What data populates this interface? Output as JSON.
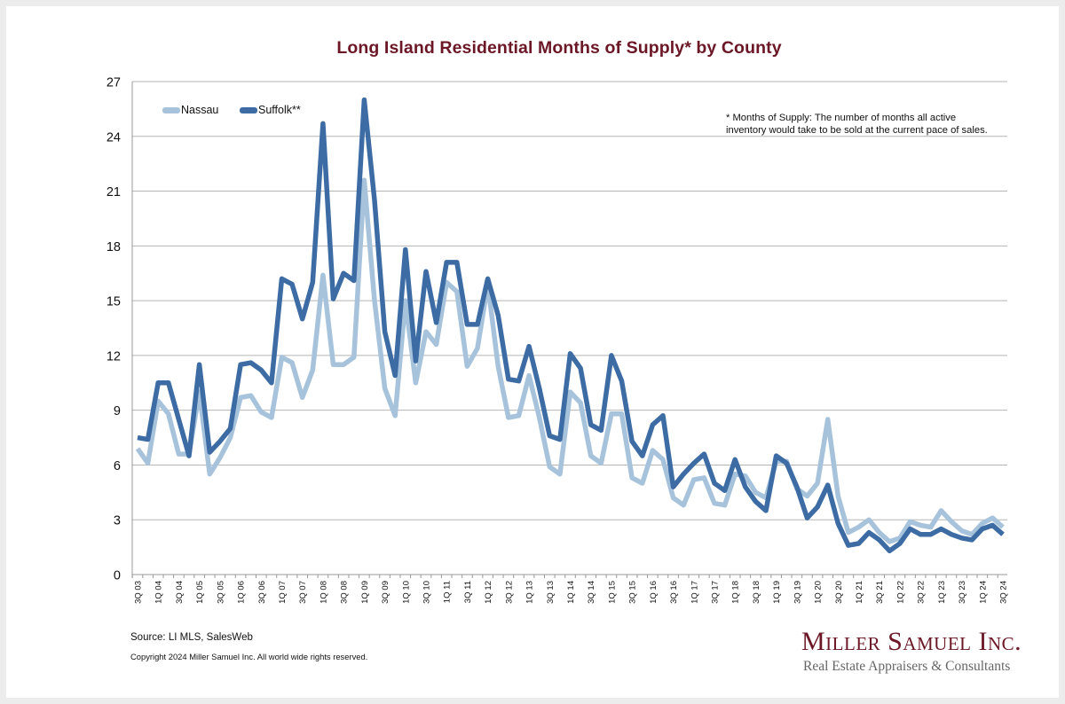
{
  "chart_data": {
    "type": "line",
    "title": "Long Island Residential Months of Supply* by County",
    "xlabel": "",
    "ylabel": "",
    "ylim": [
      0,
      27
    ],
    "yticks": [
      0,
      3,
      6,
      9,
      12,
      15,
      18,
      21,
      24,
      27
    ],
    "grid": true,
    "legend_position": "top-left",
    "x": [
      "3Q 03",
      "4Q 03",
      "1Q 04",
      "2Q 04",
      "3Q 04",
      "4Q 04",
      "1Q 05",
      "2Q 05",
      "3Q 05",
      "4Q 05",
      "1Q 06",
      "2Q 06",
      "3Q 06",
      "4Q 06",
      "1Q 07",
      "2Q 07",
      "3Q 07",
      "4Q 07",
      "1Q 08",
      "2Q 08",
      "3Q 08",
      "4Q 08",
      "1Q 09",
      "2Q 09",
      "3Q 09",
      "4Q 09",
      "1Q 10",
      "2Q 10",
      "3Q 10",
      "4Q 10",
      "1Q 11",
      "2Q 11",
      "3Q 11",
      "4Q 11",
      "1Q 12",
      "2Q 12",
      "3Q 12",
      "4Q 12",
      "1Q 13",
      "2Q 13",
      "3Q 13",
      "4Q 13",
      "1Q 14",
      "2Q 14",
      "3Q 14",
      "4Q 14",
      "1Q 15",
      "2Q 15",
      "3Q 15",
      "4Q 15",
      "1Q 16",
      "2Q 16",
      "3Q 16",
      "4Q 16",
      "1Q 17",
      "2Q 17",
      "3Q 17",
      "4Q 17",
      "1Q 18",
      "2Q 18",
      "3Q 18",
      "4Q 18",
      "1Q 19",
      "2Q 19",
      "3Q 19",
      "4Q 19",
      "1Q 20",
      "2Q 20",
      "3Q 20",
      "4Q 20",
      "1Q 21",
      "2Q 21",
      "3Q 21",
      "4Q 21",
      "1Q 22",
      "2Q 22",
      "3Q 22",
      "4Q 22",
      "1Q 23",
      "2Q 23",
      "3Q 23",
      "4Q 23",
      "1Q 24",
      "2Q 24",
      "3Q 24"
    ],
    "xtick_labels": [
      "3Q 03",
      "1Q 04",
      "3Q 04",
      "1Q 05",
      "3Q 05",
      "1Q 06",
      "3Q 06",
      "1Q 07",
      "3Q 07",
      "1Q 08",
      "3Q 08",
      "1Q 09",
      "3Q 09",
      "1Q 10",
      "3Q 10",
      "1Q 11",
      "3Q 11",
      "1Q 12",
      "3Q 12",
      "1Q 13",
      "3Q 13",
      "1Q 14",
      "3Q 14",
      "1Q 15",
      "3Q 15",
      "1Q 16",
      "3Q 16",
      "1Q 17",
      "3Q 17",
      "1Q 18",
      "3Q 18",
      "1Q 19",
      "3Q 19",
      "1Q 20",
      "3Q 20",
      "1Q 21",
      "3Q 21",
      "1Q 22",
      "3Q 22",
      "1Q 23",
      "3Q 23",
      "1Q 24",
      "3Q 24"
    ],
    "series": [
      {
        "name": "Nassau",
        "color": "#a7c3dc",
        "values": [
          6.9,
          6.1,
          9.5,
          8.8,
          6.6,
          6.6,
          10.0,
          5.5,
          6.4,
          7.5,
          9.7,
          9.8,
          8.9,
          8.6,
          11.9,
          11.6,
          9.7,
          11.2,
          16.4,
          11.5,
          11.5,
          11.9,
          21.6,
          15.0,
          10.2,
          8.7,
          15.0,
          10.5,
          13.3,
          12.6,
          16.0,
          15.5,
          11.4,
          12.4,
          15.9,
          11.4,
          8.6,
          8.7,
          10.9,
          8.6,
          5.9,
          5.5,
          10.0,
          9.4,
          6.5,
          6.1,
          8.8,
          8.8,
          5.3,
          5.0,
          6.8,
          6.3,
          4.2,
          3.8,
          5.2,
          5.3,
          3.9,
          3.8,
          5.5,
          5.4,
          4.5,
          4.2,
          6.2,
          6.2,
          4.7,
          4.3,
          5.0,
          8.5,
          4.3,
          2.3,
          2.6,
          3.0,
          2.3,
          1.8,
          2.0,
          2.9,
          2.7,
          2.6,
          3.5,
          2.9,
          2.4,
          2.2,
          2.8,
          3.1,
          2.6
        ]
      },
      {
        "name": "Suffolk**",
        "color": "#3d6ca5",
        "values": [
          7.5,
          7.4,
          10.5,
          10.5,
          8.5,
          6.5,
          11.5,
          6.7,
          7.3,
          8.0,
          11.5,
          11.6,
          11.2,
          10.5,
          16.2,
          15.9,
          14.0,
          16.0,
          24.7,
          15.1,
          16.5,
          16.1,
          26.0,
          20.5,
          13.3,
          10.9,
          17.8,
          11.7,
          16.6,
          13.8,
          17.1,
          17.1,
          13.7,
          13.7,
          16.2,
          14.2,
          10.7,
          10.6,
          12.5,
          10.2,
          7.6,
          7.4,
          12.1,
          11.3,
          8.2,
          7.9,
          12.0,
          10.6,
          7.3,
          6.5,
          8.2,
          8.7,
          4.8,
          5.5,
          6.1,
          6.6,
          5.0,
          4.6,
          6.3,
          4.8,
          4.0,
          3.5,
          6.5,
          6.1,
          4.8,
          3.1,
          3.7,
          4.9,
          2.8,
          1.6,
          1.7,
          2.3,
          1.9,
          1.3,
          1.7,
          2.5,
          2.2,
          2.2,
          2.5,
          2.2,
          2.0,
          1.9,
          2.5,
          2.7,
          2.2
        ]
      }
    ],
    "annotations": [
      "* Months of Supply: The number of months all active",
      "inventory would take to be sold at the current pace of sales."
    ]
  },
  "footer": {
    "source": "Source:  LI MLS, SalesWeb",
    "copyright": "Copyright 2024 Miller Samuel Inc.  All world wide rights reserved.",
    "brand": "Miller Samuel Inc.",
    "tagline": "Real Estate Appraisers & Consultants"
  }
}
